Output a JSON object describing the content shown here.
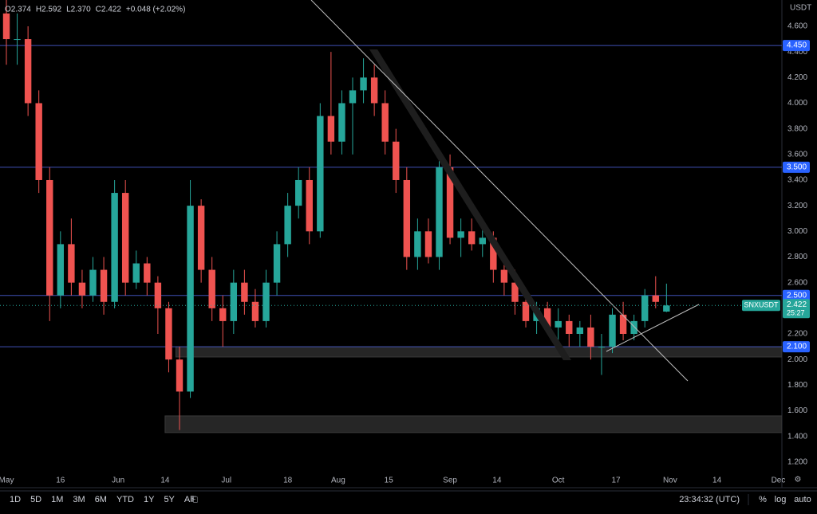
{
  "chart_data": {
    "type": "candlestick",
    "symbol": "SNXUSDT",
    "currency": "USDT",
    "last_price_label": "2.422",
    "countdown": "25:27",
    "legend": [
      "O2.374",
      "H2.592",
      "L2.370",
      "C2.422",
      "+0.048 (+2.02%)"
    ],
    "up_color": "#26a69a",
    "down_color": "#ef5350",
    "x": [
      0,
      3,
      6,
      9,
      12,
      15,
      18,
      21,
      24,
      27,
      30,
      33,
      36,
      39,
      42,
      45,
      48,
      51,
      54,
      57,
      60,
      63,
      66,
      69,
      72,
      75,
      78,
      81,
      84,
      87,
      90,
      93,
      96,
      99,
      102,
      105,
      108,
      111,
      114,
      117,
      120,
      123,
      126,
      129,
      132,
      135,
      138,
      141,
      144,
      147,
      150,
      153,
      156,
      159,
      162,
      165,
      168,
      171,
      174,
      177,
      180,
      183
    ],
    "open": [
      4.7,
      4.5,
      4.5,
      4.0,
      3.4,
      2.5,
      2.9,
      2.6,
      2.5,
      2.7,
      2.45,
      3.3,
      2.6,
      2.75,
      2.6,
      2.4,
      2.0,
      1.75,
      3.2,
      2.7,
      2.4,
      2.3,
      2.6,
      2.45,
      2.3,
      2.6,
      2.9,
      3.2,
      3.4,
      3.0,
      3.9,
      3.7,
      4.0,
      4.1,
      4.2,
      4.0,
      3.7,
      3.4,
      2.8,
      3.0,
      2.8,
      3.5,
      2.95,
      3.0,
      2.9,
      2.95,
      2.7,
      2.6,
      2.45,
      2.3,
      2.4,
      2.25,
      2.3,
      2.2,
      2.25,
      2.1,
      2.1,
      2.35,
      2.2,
      2.3,
      2.5,
      2.374
    ],
    "high": [
      4.9,
      4.7,
      4.6,
      4.1,
      3.5,
      3.0,
      3.1,
      2.7,
      2.8,
      2.8,
      3.4,
      3.4,
      2.85,
      2.8,
      2.65,
      2.45,
      2.1,
      3.4,
      3.25,
      2.8,
      2.5,
      2.7,
      2.7,
      2.55,
      2.7,
      3.0,
      3.3,
      3.5,
      3.5,
      4.0,
      4.4,
      4.1,
      4.2,
      4.35,
      4.3,
      4.1,
      3.8,
      3.5,
      3.1,
      3.1,
      3.55,
      3.6,
      3.1,
      3.1,
      3.05,
      3.0,
      2.8,
      2.7,
      2.55,
      2.45,
      2.45,
      2.4,
      2.35,
      2.3,
      2.35,
      2.2,
      2.4,
      2.45,
      2.35,
      2.55,
      2.65,
      2.592
    ],
    "low": [
      4.3,
      4.3,
      3.9,
      3.3,
      2.3,
      2.4,
      2.5,
      2.4,
      2.45,
      2.35,
      2.4,
      2.5,
      2.55,
      2.5,
      2.2,
      1.9,
      1.45,
      1.7,
      2.6,
      2.3,
      2.1,
      2.2,
      2.35,
      2.25,
      2.25,
      2.5,
      2.8,
      3.1,
      2.9,
      2.95,
      3.6,
      3.6,
      3.6,
      4.0,
      3.9,
      3.6,
      3.3,
      2.7,
      2.7,
      2.75,
      2.7,
      2.9,
      2.8,
      2.85,
      2.8,
      2.6,
      2.5,
      2.35,
      2.25,
      2.2,
      2.2,
      2.15,
      2.1,
      2.1,
      2.0,
      1.88,
      2.05,
      2.15,
      2.15,
      2.25,
      2.4,
      2.37
    ],
    "close": [
      4.5,
      4.5,
      4.0,
      3.4,
      2.5,
      2.9,
      2.6,
      2.5,
      2.7,
      2.45,
      3.3,
      2.6,
      2.75,
      2.6,
      2.4,
      2.0,
      1.75,
      3.2,
      2.7,
      2.4,
      2.3,
      2.6,
      2.45,
      2.3,
      2.6,
      2.9,
      3.2,
      3.4,
      3.0,
      3.9,
      3.7,
      4.0,
      4.1,
      4.2,
      4.0,
      3.7,
      3.4,
      2.8,
      3.0,
      2.8,
      3.5,
      2.95,
      3.0,
      2.9,
      2.95,
      2.7,
      2.6,
      2.45,
      2.3,
      2.4,
      2.25,
      2.3,
      2.2,
      2.25,
      2.1,
      2.1,
      2.35,
      2.2,
      2.3,
      2.5,
      2.45,
      2.422
    ],
    "xlim": [
      0,
      215
    ],
    "ylim": [
      1.0,
      4.805
    ],
    "xticks": [
      {
        "value": 0,
        "label": "May"
      },
      {
        "value": 15,
        "label": "16"
      },
      {
        "value": 31,
        "label": "Jun"
      },
      {
        "value": 44,
        "label": "14"
      },
      {
        "value": 61,
        "label": "Jul"
      },
      {
        "value": 78,
        "label": "18"
      },
      {
        "value": 92,
        "label": "Aug"
      },
      {
        "value": 106,
        "label": "15"
      },
      {
        "value": 123,
        "label": "Sep"
      },
      {
        "value": 136,
        "label": "14"
      },
      {
        "value": 153,
        "label": "Oct"
      },
      {
        "value": 169,
        "label": "17"
      },
      {
        "value": 184,
        "label": "Nov"
      },
      {
        "value": 197,
        "label": "14"
      },
      {
        "value": 214,
        "label": "Dec"
      }
    ],
    "yticks": [
      {
        "value": 4.6,
        "label": "4.600"
      },
      {
        "value": 4.4,
        "label": "4.400"
      },
      {
        "value": 4.2,
        "label": "4.200"
      },
      {
        "value": 4.0,
        "label": "4.000"
      },
      {
        "value": 3.8,
        "label": "3.800"
      },
      {
        "value": 3.6,
        "label": "3.600"
      },
      {
        "value": 3.4,
        "label": "3.400"
      },
      {
        "value": 3.2,
        "label": "3.200"
      },
      {
        "value": 3.0,
        "label": "3.000"
      },
      {
        "value": 2.8,
        "label": "2.800"
      },
      {
        "value": 2.6,
        "label": "2.600"
      },
      {
        "value": 2.2,
        "label": "2.200"
      },
      {
        "value": 2.0,
        "label": "2.000"
      },
      {
        "value": 1.8,
        "label": "1.800"
      },
      {
        "value": 1.6,
        "label": "1.600"
      },
      {
        "value": 1.4,
        "label": "1.400"
      },
      {
        "value": 1.2,
        "label": "1.200"
      }
    ],
    "levels": [
      {
        "value": 4.45,
        "label": "4.450"
      },
      {
        "value": 3.5,
        "label": "3.500"
      },
      {
        "value": 2.5,
        "label": "2.500"
      },
      {
        "value": 2.1,
        "label": "2.100"
      }
    ],
    "zones": [
      {
        "x": 47,
        "from": 2.02,
        "to": 2.1
      },
      {
        "x": 44,
        "from": 1.43,
        "to": 1.56
      }
    ]
  },
  "toolbar": {
    "ranges": [
      "1D",
      "5D",
      "1M",
      "3M",
      "6M",
      "YTD",
      "1Y",
      "5Y",
      "All"
    ],
    "time": "23:34:32 (UTC)",
    "options": [
      "%",
      "log",
      "auto"
    ]
  }
}
